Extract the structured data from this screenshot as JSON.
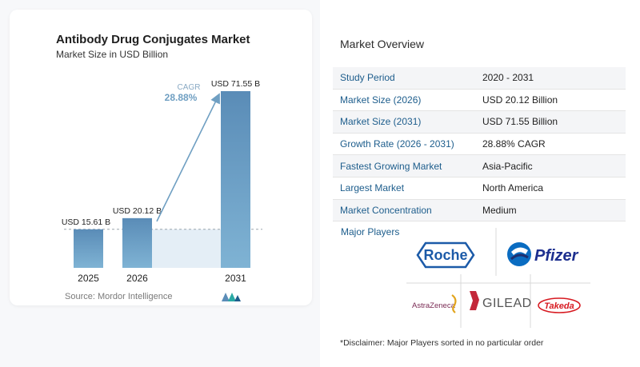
{
  "chart_data": {
    "type": "bar",
    "title": "Antibody Drug Conjugates Market",
    "subtitle": "Market Size in USD Billion",
    "categories": [
      "2025",
      "2026",
      "2031"
    ],
    "values": [
      15.61,
      20.12,
      71.55
    ],
    "data_labels": [
      "USD 15.61 B",
      "USD 20.12 B",
      "USD 71.55 B"
    ],
    "ylim": [
      0,
      71.55
    ],
    "cagr_label": "CAGR",
    "cagr_value": "28.88%",
    "bar_color": "#5b8db8",
    "dashed_reference_line": true
  },
  "source": "Source:  Mordor Intelligence",
  "overview": {
    "title": "Market Overview",
    "rows": [
      {
        "label": "Study Period",
        "value": "2020 - 2031"
      },
      {
        "label": "Market Size (2026)",
        "value": "USD 20.12 Billion"
      },
      {
        "label": "Market Size (2031)",
        "value": "USD 71.55 Billion"
      },
      {
        "label": "Growth Rate (2026 - 2031)",
        "value": "28.88% CAGR"
      },
      {
        "label": "Fastest Growing Market",
        "value": "Asia-Pacific"
      },
      {
        "label": "Largest Market",
        "value": "North America"
      },
      {
        "label": "Market Concentration",
        "value": "Medium"
      }
    ],
    "major_players_label": "Major Players",
    "players": [
      "Roche",
      "Pfizer",
      "AstraZeneca",
      "GILEAD",
      "Takeda"
    ],
    "disclaimer": "*Disclaimer: Major Players sorted in no particular order"
  },
  "colors": {
    "accent_blue": "#1d5d8c",
    "bar": "#5b8db8",
    "cagr": "#6f9fc2"
  }
}
